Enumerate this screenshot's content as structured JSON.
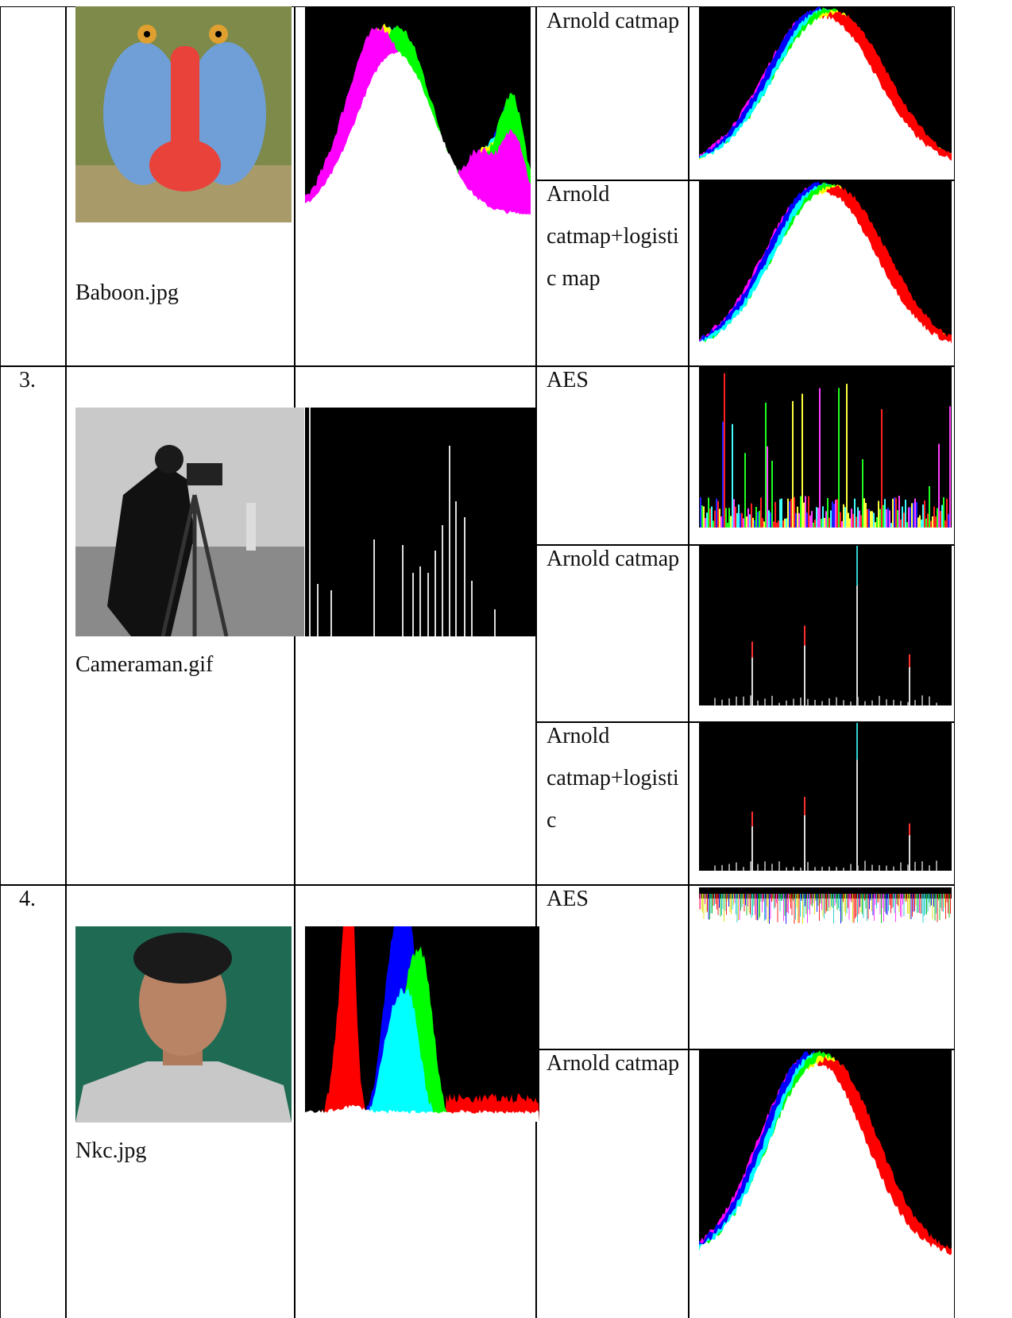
{
  "table": {
    "rows": [
      {
        "image": "Baboon.jpg",
        "methods": [
          "Arnold catmap",
          "Arnold catmap+logistic map"
        ]
      },
      {
        "number": "3.",
        "image": "Cameraman.gif",
        "methods": [
          "AES",
          "Arnold catmap",
          "Arnold catmap+logistic"
        ]
      },
      {
        "number": "4.",
        "image": "Nkc.jpg",
        "methods": [
          "AES",
          "Arnold catmap"
        ]
      }
    ]
  }
}
